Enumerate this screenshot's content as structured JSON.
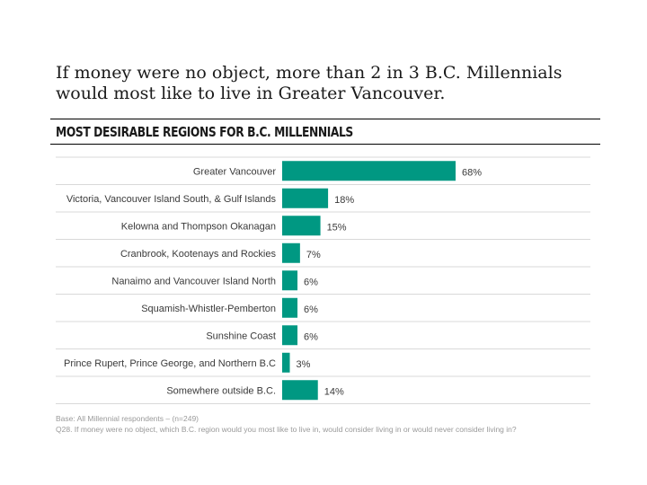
{
  "headline": "If money were no object, more than 2 in 3 B.C. Millennials would most like to live in Greater Vancouver.",
  "section_title": "MOST DESIRABLE REGIONS FOR B.C. MILLENNIALS",
  "footnotes": {
    "base": "Base: All Millennial respondents – (n=249)",
    "question": "Q28. If money were no object, which B.C. region would you most like to live in, would consider living in or would never consider living in?"
  },
  "chart_data": {
    "type": "bar",
    "orientation": "horizontal",
    "categories": [
      "Greater Vancouver",
      "Victoria, Vancouver Island South, & Gulf Islands",
      "Kelowna and Thompson Okanagan",
      "Cranbrook, Kootenays and Rockies",
      "Nanaimo and Vancouver Island North",
      "Squamish-Whistler-Pemberton",
      "Sunshine Coast",
      "Prince Rupert, Prince George, and Northern B.C",
      "Somewhere outside B.C."
    ],
    "values": [
      68,
      18,
      15,
      7,
      6,
      6,
      6,
      3,
      14
    ],
    "value_labels": [
      "68%",
      "18%",
      "15%",
      "7%",
      "6%",
      "6%",
      "6%",
      "3%",
      "14%"
    ],
    "unit": "%",
    "bar_color": "#009882",
    "row_divider_color": "#d9d9d9",
    "grid": false
  }
}
